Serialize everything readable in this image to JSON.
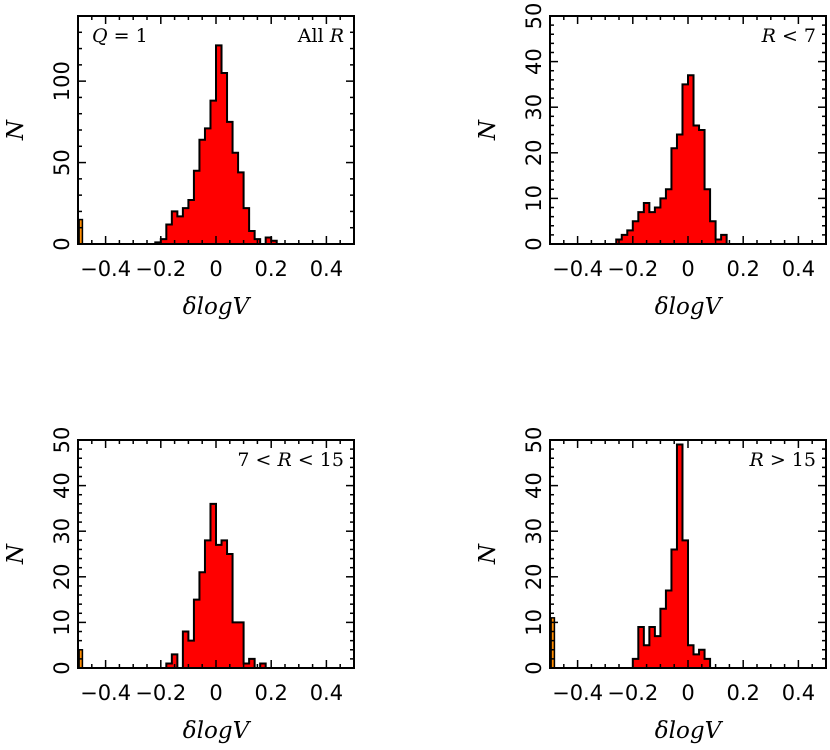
{
  "chart_data": [
    {
      "type": "bar",
      "annotation_left": "Q = 1",
      "annotation_right": "All R",
      "xlabel": "δlogV",
      "ylabel": "N",
      "xlim": [
        -0.5,
        0.5
      ],
      "ylim": [
        0,
        140
      ],
      "xticks": [
        -0.4,
        -0.2,
        0,
        0.2,
        0.4
      ],
      "xtick_labels": [
        "−0.4",
        "−0.2",
        "0",
        "0.2",
        "0.4"
      ],
      "yticks": [
        0,
        50,
        100
      ],
      "ytick_labels": [
        "0",
        "50",
        "100"
      ],
      "bin_start": -0.22,
      "bin_width": 0.02,
      "values": [
        1,
        3,
        12,
        20,
        17,
        22,
        27,
        45,
        64,
        71,
        88,
        122,
        105,
        75,
        56,
        44,
        22,
        8,
        3,
        0,
        4,
        2
      ],
      "outlier_bar": {
        "x": -0.49,
        "value": 15,
        "color": "#ff8c00"
      },
      "fill_color": "#ff0000"
    },
    {
      "type": "bar",
      "annotation_left": "",
      "annotation_right": "R < 7",
      "xlabel": "δlogV",
      "ylabel": "N",
      "xlim": [
        -0.5,
        0.5
      ],
      "ylim": [
        0,
        50
      ],
      "xticks": [
        -0.4,
        -0.2,
        0,
        0.2,
        0.4
      ],
      "xtick_labels": [
        "−0.4",
        "−0.2",
        "0",
        "0.2",
        "0.4"
      ],
      "yticks": [
        0,
        10,
        20,
        30,
        40,
        50
      ],
      "ytick_labels": [
        "0",
        "10",
        "20",
        "30",
        "40",
        "50"
      ],
      "bin_start": -0.26,
      "bin_width": 0.02,
      "values": [
        1,
        2,
        3,
        5,
        7,
        9,
        7,
        8,
        10,
        12,
        21,
        24,
        35,
        37,
        26,
        25,
        12,
        5,
        1,
        2,
        0
      ],
      "outlier_bar": null,
      "fill_color": "#ff0000"
    },
    {
      "type": "bar",
      "annotation_left": "",
      "annotation_right": "7 < R < 15",
      "xlabel": "δlogV",
      "ylabel": "N",
      "xlim": [
        -0.5,
        0.5
      ],
      "ylim": [
        0,
        50
      ],
      "xticks": [
        -0.4,
        -0.2,
        0,
        0.2,
        0.4
      ],
      "xtick_labels": [
        "−0.4",
        "−0.2",
        "0",
        "0.2",
        "0.4"
      ],
      "yticks": [
        0,
        10,
        20,
        30,
        40,
        50
      ],
      "ytick_labels": [
        "0",
        "10",
        "20",
        "30",
        "40",
        "50"
      ],
      "bin_start": -0.18,
      "bin_width": 0.02,
      "values": [
        1,
        3,
        0,
        8,
        6,
        15,
        21,
        28,
        36,
        27,
        28,
        25,
        10,
        10,
        1,
        2,
        0,
        1
      ],
      "outlier_bar": {
        "x": -0.49,
        "value": 4,
        "color": "#ff8c00"
      },
      "fill_color": "#ff0000"
    },
    {
      "type": "bar",
      "annotation_left": "",
      "annotation_right": "R > 15",
      "xlabel": "δlogV",
      "ylabel": "N",
      "xlim": [
        -0.5,
        0.5
      ],
      "ylim": [
        0,
        50
      ],
      "xticks": [
        -0.4,
        -0.2,
        0,
        0.2,
        0.4
      ],
      "xtick_labels": [
        "−0.4",
        "−0.2",
        "0",
        "0.2",
        "0.4"
      ],
      "yticks": [
        0,
        10,
        20,
        30,
        40,
        50
      ],
      "ytick_labels": [
        "0",
        "10",
        "20",
        "30",
        "40",
        "50"
      ],
      "bin_start": -0.2,
      "bin_width": 0.02,
      "values": [
        2,
        9,
        5,
        9,
        7,
        13,
        17,
        26,
        49,
        28,
        5,
        3,
        4,
        2
      ],
      "outlier_bar": {
        "x": -0.49,
        "value": 11,
        "color": "#ff8c00"
      },
      "fill_color": "#ff0000"
    }
  ]
}
